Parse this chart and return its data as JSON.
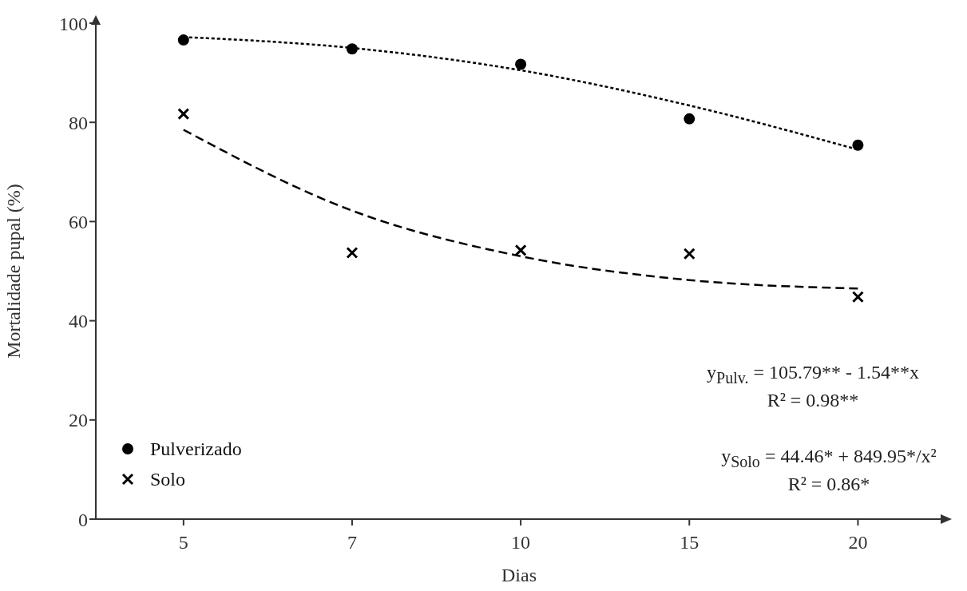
{
  "chart_data": {
    "type": "scatter",
    "xlabel": "Dias",
    "ylabel": "Mortalidade pupal (%)",
    "categories": [
      "5",
      "7",
      "10",
      "15",
      "20"
    ],
    "ylim": [
      0,
      100
    ],
    "yticks": [
      0,
      20,
      40,
      60,
      80,
      100
    ],
    "grid": false,
    "legend": "bottom left",
    "series": [
      {
        "name": "Pulverizado",
        "type": "scatter",
        "marker": "circle",
        "color": "#000000",
        "values": [
          96.6,
          94.8,
          91.7,
          80.7,
          75.4
        ]
      },
      {
        "name": "Solo",
        "type": "scatter",
        "marker": "cross",
        "color": "#000000",
        "values": [
          81.7,
          53.7,
          54.2,
          53.5,
          44.8
        ]
      },
      {
        "type": "line",
        "line_style": "dotted",
        "marker": "none",
        "color": "#000000",
        "values": [
          97.2,
          95.0,
          90.5,
          83.4,
          74.5
        ]
      },
      {
        "type": "line",
        "line_style": "dashed",
        "marker": "none",
        "color": "#000000",
        "values": [
          78.5,
          62.2,
          53.0,
          48.2,
          46.5
        ]
      }
    ],
    "annotations": [
      "y$_{Pulv.}$ = 105.79** - 1.54**x",
      "R² = 0.98**",
      "y$_{Solo}$ = 44.46* + 849.95*/x²",
      "R² = 0.86*"
    ]
  }
}
